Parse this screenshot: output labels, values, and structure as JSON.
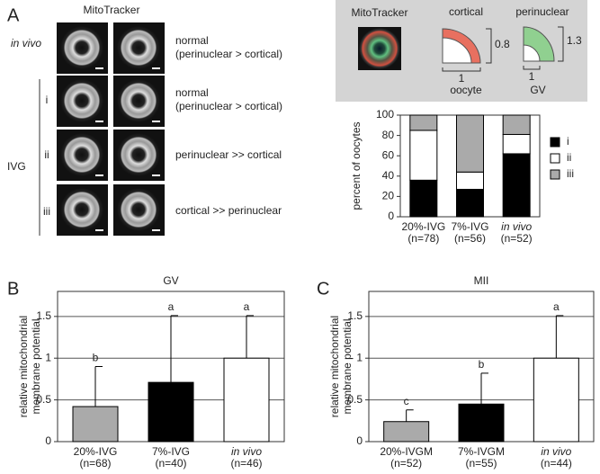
{
  "figure": {
    "panels": [
      "A",
      "B",
      "C"
    ],
    "micro_header": "MitoTracker",
    "in_vivo": "in vivo",
    "ivg": "IVG",
    "rows": [
      "i",
      "ii",
      "iii"
    ],
    "descriptions": [
      [
        "normal",
        "(perinuclear > cortical)"
      ],
      [
        "normal",
        "(perinuclear > cortical)"
      ],
      [
        "perinuclear >> cortical"
      ],
      [
        "cortical >> perinuclear"
      ]
    ],
    "inset": {
      "mito": "MitoTracker",
      "cortical": "cortical",
      "perinuclear": "perinuclear",
      "cortical_height": "0.8",
      "cortical_width": "1",
      "cortical_name": "oocyte",
      "peri_height": "1.3",
      "peri_width": "1",
      "peri_name": "GV"
    }
  },
  "chart_data": [
    {
      "type": "stacked-bar",
      "ylabel": "percent of oocytes",
      "categories": [
        "20%-IVG",
        "7%-IVG",
        "in vivo"
      ],
      "category_notes": [
        "(n=78)",
        "(n=56)",
        "(n=52)"
      ],
      "italic": [
        false,
        false,
        true
      ],
      "series": [
        {
          "name": "i",
          "color": "#000000",
          "values": [
            36,
            27,
            62
          ]
        },
        {
          "name": "ii",
          "color": "#ffffff",
          "values": [
            49,
            17,
            19
          ]
        },
        {
          "name": "iii",
          "color": "#aaaaaa",
          "values": [
            15,
            56,
            19
          ]
        }
      ],
      "ylim": [
        0,
        100
      ],
      "yticks": [
        0,
        20,
        40,
        60,
        80,
        100
      ],
      "legend": "right"
    },
    {
      "type": "bar",
      "title": "GV",
      "ylabel": [
        "relative mitochondrial",
        "membrane potential"
      ],
      "categories": [
        "20%-IVG",
        "7%-IVG",
        "in vivo"
      ],
      "category_notes": [
        "(n=68)",
        "(n=40)",
        "(n=46)"
      ],
      "italic": [
        false,
        false,
        true
      ],
      "values": [
        0.42,
        0.71,
        1.0
      ],
      "errors": [
        0.48,
        0.8,
        0.51
      ],
      "annotations": [
        "b",
        "a",
        "a"
      ],
      "colors": [
        "#aaaaaa",
        "#000000",
        "#ffffff"
      ],
      "ylim": [
        0,
        1.8
      ],
      "yticks": [
        0,
        0.5,
        1,
        1.5
      ],
      "grid": true
    },
    {
      "type": "bar",
      "title": "MII",
      "ylabel": [
        "relative mitochondrial",
        "membrane potential"
      ],
      "categories": [
        "20%-IVGM",
        "7%-IVGM",
        "in vivo"
      ],
      "category_notes": [
        "(n=52)",
        "(n=55)",
        "(n=44)"
      ],
      "italic": [
        false,
        false,
        true
      ],
      "values": [
        0.24,
        0.45,
        1.0
      ],
      "errors": [
        0.14,
        0.37,
        0.51
      ],
      "annotations": [
        "c",
        "b",
        "a"
      ],
      "colors": [
        "#aaaaaa",
        "#000000",
        "#ffffff"
      ],
      "ylim": [
        0,
        1.8
      ],
      "yticks": [
        0,
        0.5,
        1,
        1.5
      ],
      "grid": true
    }
  ]
}
